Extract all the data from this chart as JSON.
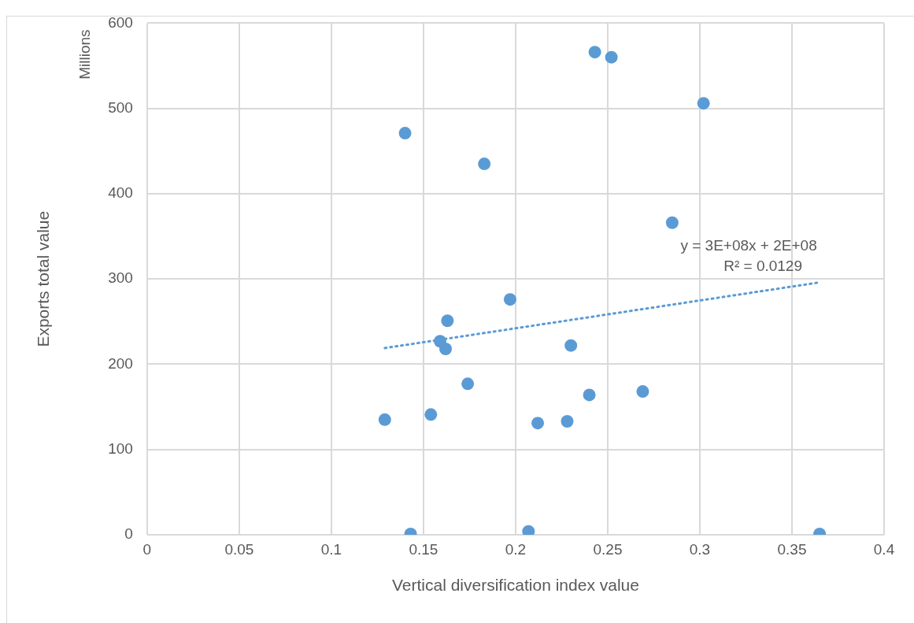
{
  "chart_data": {
    "type": "scatter",
    "xlabel": "Vertical diversification index value",
    "ylabel": "Exports total value",
    "annotations": [
      "Millions",
      "y = 3E+08x + 2E+08",
      "R² = 0.0129"
    ],
    "xlim": [
      0,
      0.4
    ],
    "xticks": [
      0,
      0.05,
      0.1,
      0.15,
      0.2,
      0.25,
      0.3,
      0.35,
      0.4
    ],
    "ylim": [
      0,
      600
    ],
    "yticks": [
      0,
      100,
      200,
      300,
      400,
      500,
      600
    ],
    "grid": true,
    "legend": false,
    "marker": "circle",
    "series": [
      {
        "color": "#5b9bd5",
        "x": [
          0.129,
          0.14,
          0.143,
          0.154,
          0.159,
          0.162,
          0.163,
          0.174,
          0.183,
          0.197,
          0.207,
          0.212,
          0.228,
          0.23,
          0.24,
          0.243,
          0.252,
          0.269,
          0.285,
          0.302,
          0.365
        ],
        "values": [
          135,
          471,
          1,
          141,
          227,
          218,
          251,
          177,
          435,
          276,
          4,
          131,
          133,
          222,
          164,
          566,
          560,
          168,
          366,
          506,
          1
        ]
      },
      {
        "type": "line",
        "color": "#5b9bd5",
        "line_style": "dotted",
        "marker": "none",
        "x": [
          0.129,
          0.365
        ],
        "values": [
          219,
          296
        ]
      }
    ]
  }
}
